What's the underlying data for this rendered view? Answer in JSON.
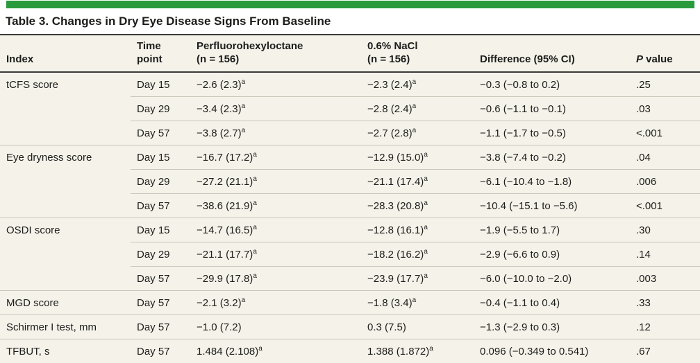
{
  "table": {
    "title": "Table 3. Changes in Dry Eye Disease Signs From Baseline",
    "accent_color": "#2a9b3d",
    "row_bg_color": "#f4f2e9",
    "divider_color": "#c9c6ba",
    "rule_color": "#3a3a36",
    "footnote_marker": "a",
    "columns": {
      "index": "Index",
      "time": "Time\npoint",
      "drug": "Perfluorohexyloctane\n(n = 156)",
      "control": "0.6% NaCl\n(n = 156)",
      "difference": "Difference (95% CI)",
      "p_italic": "P",
      "p_rest": " value"
    },
    "groups": [
      {
        "index": "tCFS score",
        "rows": [
          {
            "time": "Day 15",
            "drug": "−2.6 (2.3)",
            "drug_sup": true,
            "control": "−2.3 (2.4)",
            "control_sup": true,
            "difference": "−0.3 (−0.8 to 0.2)",
            "p": ".25"
          },
          {
            "time": "Day 29",
            "drug": "−3.4 (2.3)",
            "drug_sup": true,
            "control": "−2.8 (2.4)",
            "control_sup": true,
            "difference": "−0.6 (−1.1 to −0.1)",
            "p": ".03"
          },
          {
            "time": "Day 57",
            "drug": "−3.8 (2.7)",
            "drug_sup": true,
            "control": "−2.7 (2.8)",
            "control_sup": true,
            "difference": "−1.1 (−1.7 to −0.5)",
            "p": "<.001"
          }
        ]
      },
      {
        "index": "Eye dryness score",
        "rows": [
          {
            "time": "Day 15",
            "drug": "−16.7 (17.2)",
            "drug_sup": true,
            "control": "−12.9 (15.0)",
            "control_sup": true,
            "difference": "−3.8 (−7.4 to −0.2)",
            "p": ".04"
          },
          {
            "time": "Day 29",
            "drug": "−27.2 (21.1)",
            "drug_sup": true,
            "control": "−21.1 (17.4)",
            "control_sup": true,
            "difference": "−6.1 (−10.4 to −1.8)",
            "p": ".006"
          },
          {
            "time": "Day 57",
            "drug": "−38.6 (21.9)",
            "drug_sup": true,
            "control": "−28.3 (20.8)",
            "control_sup": true,
            "difference": "−10.4 (−15.1 to −5.6)",
            "p": "<.001"
          }
        ]
      },
      {
        "index": "OSDI score",
        "rows": [
          {
            "time": "Day 15",
            "drug": "−14.7 (16.5)",
            "drug_sup": true,
            "control": "−12.8 (16.1)",
            "control_sup": true,
            "difference": "−1.9 (−5.5 to 1.7)",
            "p": ".30"
          },
          {
            "time": "Day 29",
            "drug": "−21.1 (17.7)",
            "drug_sup": true,
            "control": "−18.2 (16.2)",
            "control_sup": true,
            "difference": "−2.9 (−6.6 to 0.9)",
            "p": ".14"
          },
          {
            "time": "Day 57",
            "drug": "−29.9 (17.8)",
            "drug_sup": true,
            "control": "−23.9 (17.7)",
            "control_sup": true,
            "difference": "−6.0 (−10.0 to −2.0)",
            "p": ".003"
          }
        ]
      },
      {
        "index": "MGD score",
        "rows": [
          {
            "time": "Day 57",
            "drug": "−2.1 (3.2)",
            "drug_sup": true,
            "control": "−1.8 (3.4)",
            "control_sup": true,
            "difference": "−0.4 (−1.1 to 0.4)",
            "p": ".33"
          }
        ]
      },
      {
        "index": "Schirmer I test, mm",
        "rows": [
          {
            "time": "Day 57",
            "drug": "−1.0 (7.2)",
            "drug_sup": false,
            "control": "0.3 (7.5)",
            "control_sup": false,
            "difference": "−1.3 (−2.9 to 0.3)",
            "p": ".12"
          }
        ]
      },
      {
        "index": "TFBUT, s",
        "rows": [
          {
            "time": "Day 57",
            "drug": "1.484 (2.108)",
            "drug_sup": true,
            "control": "1.388 (1.872)",
            "control_sup": true,
            "difference": "0.096 (−0.349 to 0.541)",
            "p": ".67"
          }
        ]
      }
    ]
  }
}
